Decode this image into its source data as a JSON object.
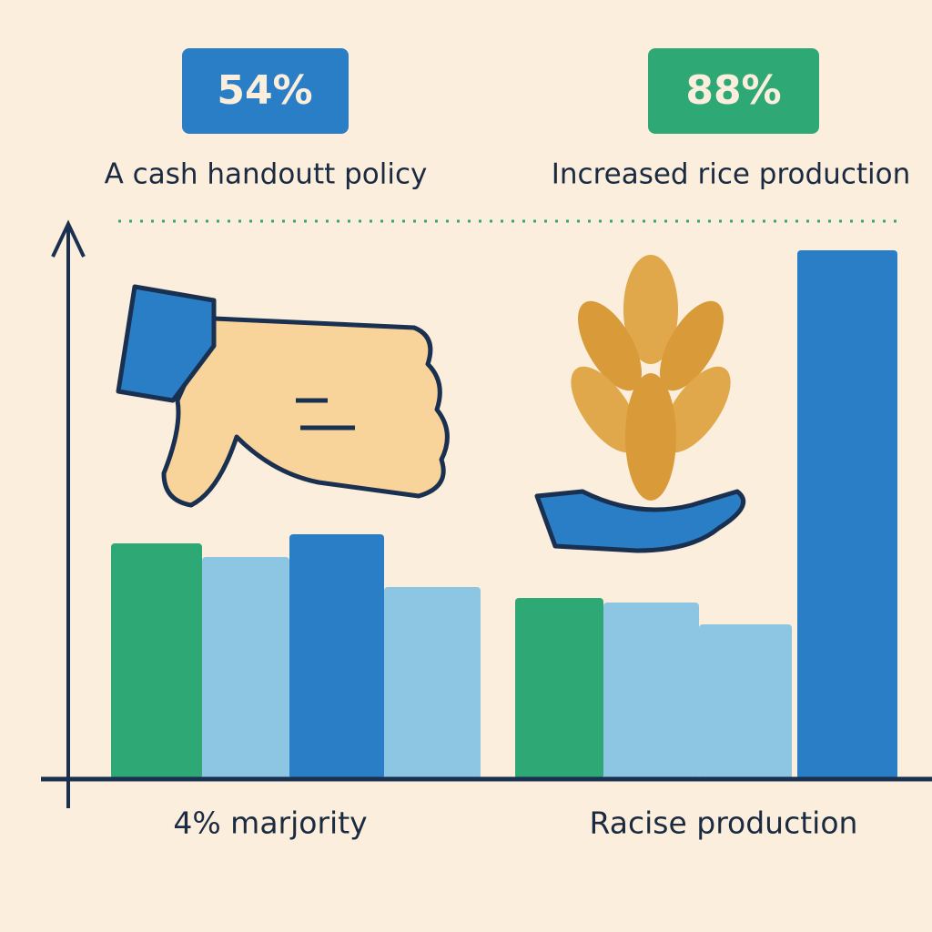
{
  "left": {
    "badge": "54%",
    "title": "A cash handoutt policy",
    "footer": "4% marjority"
  },
  "right": {
    "badge": "88%",
    "title": "Increased rice production",
    "footer": "Racise production"
  }
}
